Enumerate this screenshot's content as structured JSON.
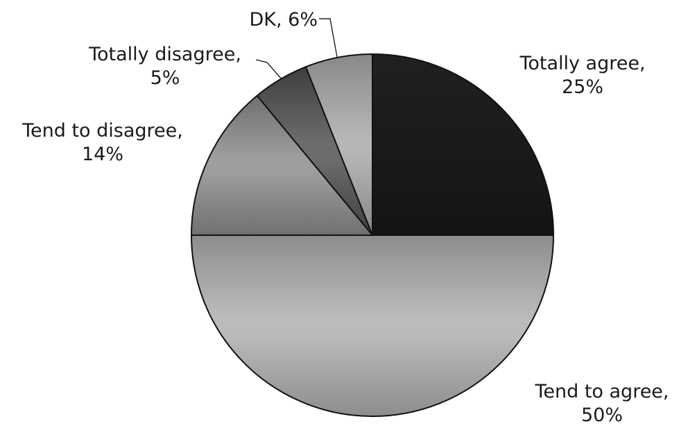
{
  "chart_data": {
    "type": "pie",
    "start_angle_deg": 0,
    "direction": "clockwise",
    "slices": [
      {
        "label": "Totally agree",
        "value": 25,
        "value_text": "25%",
        "color": "#1a1a1a"
      },
      {
        "label": "Tend to agree",
        "value": 50,
        "value_text": "50%",
        "color": "#a9a9a9"
      },
      {
        "label": "Tend to disagree",
        "value": 14,
        "value_text": "14%",
        "color": "#8c8c8c"
      },
      {
        "label": "Totally disagree",
        "value": 5,
        "value_text": "5%",
        "color": "#5a5a5a"
      },
      {
        "label": "DK",
        "value": 6,
        "value_text": "6%",
        "color": "#a4a4a4"
      }
    ]
  }
}
